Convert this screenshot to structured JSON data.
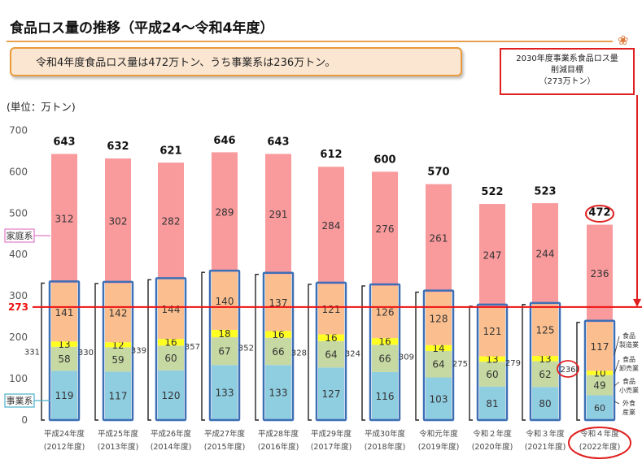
{
  "title": "食品ロス量の推移（平成24～令和4年度）",
  "summary": "令和4年度食品ロス量は472万トン、うち事業系は236万トン。",
  "target_box": {
    "line1": "2030年度事業系食品ロス量",
    "line2": "削減目標",
    "line3": "（273万トン）"
  },
  "unit_label": "(単位：万トン)",
  "colors": {
    "household": "#f99a9c",
    "manufacturing": "#fbbf8f",
    "wholesale": "#ffff22",
    "retail": "#c6d9a2",
    "foodservice": "#8fcde0",
    "box_border": "#3d6fb5",
    "target_line": "#ee1111",
    "year_label": "#444444"
  },
  "chart_data": {
    "type": "bar",
    "stacked": true,
    "ylim": [
      0,
      700
    ],
    "yticks": [
      0,
      100,
      200,
      300,
      400,
      500,
      600,
      700
    ],
    "categories": [
      "平成24年度",
      "平成25年度",
      "平成26年度",
      "平成27年度",
      "平成28年度",
      "平成29年度",
      "平成30年度",
      "令和元年度",
      "令和２年度",
      "令和３年度",
      "令和４年度"
    ],
    "categories_sub": [
      "(2012年度)",
      "(2013年度)",
      "(2014年度)",
      "(2015年度)",
      "(2016年度)",
      "(2017年度)",
      "(2018年度)",
      "(2019年度)",
      "(2020年度)",
      "(2021年度)",
      "(2022年度)"
    ],
    "series": [
      {
        "key": "foodservice",
        "values": [
          119,
          117,
          120,
          133,
          133,
          127,
          116,
          103,
          81,
          80,
          60
        ]
      },
      {
        "key": "retail",
        "values": [
          58,
          59,
          60,
          67,
          66,
          64,
          66,
          64,
          60,
          62,
          49
        ]
      },
      {
        "key": "wholesale",
        "values": [
          13,
          12,
          16,
          18,
          16,
          16,
          16,
          14,
          13,
          13,
          10
        ]
      },
      {
        "key": "manufacturing",
        "values": [
          141,
          142,
          144,
          140,
          137,
          121,
          126,
          128,
          121,
          125,
          117
        ]
      },
      {
        "key": "household",
        "values": [
          312,
          302,
          282,
          289,
          291,
          284,
          276,
          261,
          247,
          244,
          236
        ]
      }
    ],
    "totals": [
      643,
      632,
      621,
      646,
      643,
      612,
      600,
      570,
      522,
      523,
      472
    ],
    "business_totals": [
      331,
      330,
      339,
      357,
      352,
      328,
      324,
      309,
      275,
      279,
      236
    ],
    "target_value": 273,
    "target_label": "273",
    "household_label": "家庭系",
    "business_label": "事業系",
    "sector_labels": [
      {
        "key": "manufacturing",
        "lines": [
          "食品",
          "製造業"
        ]
      },
      {
        "key": "wholesale",
        "lines": [
          "食品",
          "卸売業"
        ]
      },
      {
        "key": "retail",
        "lines": [
          "食品",
          "小売業"
        ]
      },
      {
        "key": "foodservice",
        "lines": [
          "外食",
          "産業"
        ]
      }
    ]
  }
}
